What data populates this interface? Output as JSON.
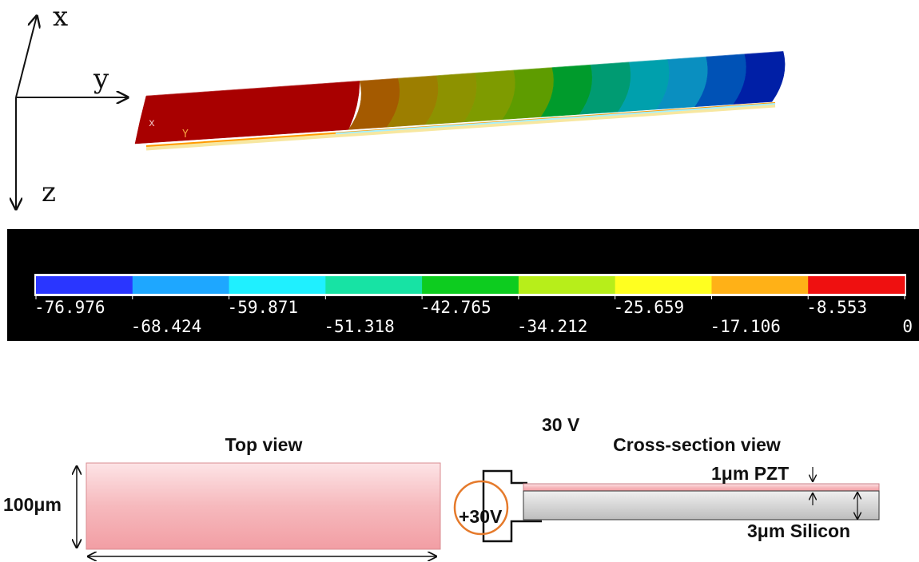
{
  "axes": {
    "x": "x",
    "y": "y",
    "z": "z"
  },
  "model_markers": {
    "a": "x",
    "b": "Y"
  },
  "colorbar": {
    "colors": [
      "#2a36ff",
      "#1ea7ff",
      "#1ff0ff",
      "#17e3a4",
      "#0dcc1f",
      "#b7ee1a",
      "#ffff20",
      "#ffb117",
      "#ef1010"
    ],
    "labels_row1": [
      "-76.976",
      "-59.871",
      "-42.765",
      "-25.659",
      "-8.553"
    ],
    "labels_row2": [
      "-68.424",
      "-51.318",
      "-34.212",
      "-17.106",
      "0"
    ]
  },
  "beam_colors": [
    "#a80000",
    "#a45a00",
    "#9c7e00",
    "#8d9200",
    "#7e9b00",
    "#5e9c00",
    "#009b2c",
    "#009b72",
    "#00a0ad",
    "#0a8fc0",
    "#0052b6",
    "#001fa6"
  ],
  "top_view": {
    "title": "Top view",
    "width_label": "100μm",
    "fill": "#f8c0c4"
  },
  "cross_section": {
    "voltage_label": "30 V",
    "title": "Cross-section view",
    "pzt_label": "1μm PZT",
    "silicon_label": "3μm Silicon",
    "source_label": "+30V",
    "pzt_color": "#f7b8bc",
    "silicon_color": "#dadada",
    "source_ring_color": "#e57a2b"
  }
}
